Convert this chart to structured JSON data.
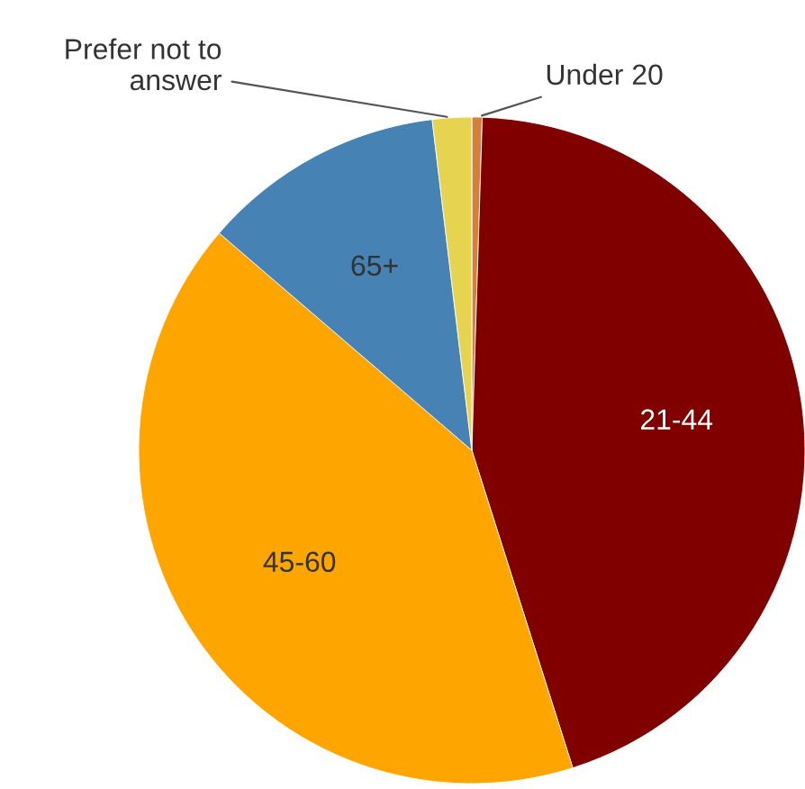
{
  "chart_data": {
    "type": "pie",
    "categories": [
      "Under 20",
      "21-44",
      "45-60",
      "65+",
      "Prefer not to answer"
    ],
    "values": [
      0.5,
      44.6,
      41.2,
      11.8,
      1.9
    ],
    "colors": [
      "#d2803c",
      "#800000",
      "#ffa500",
      "#4682b4",
      "#e6d450"
    ],
    "legend": false
  }
}
